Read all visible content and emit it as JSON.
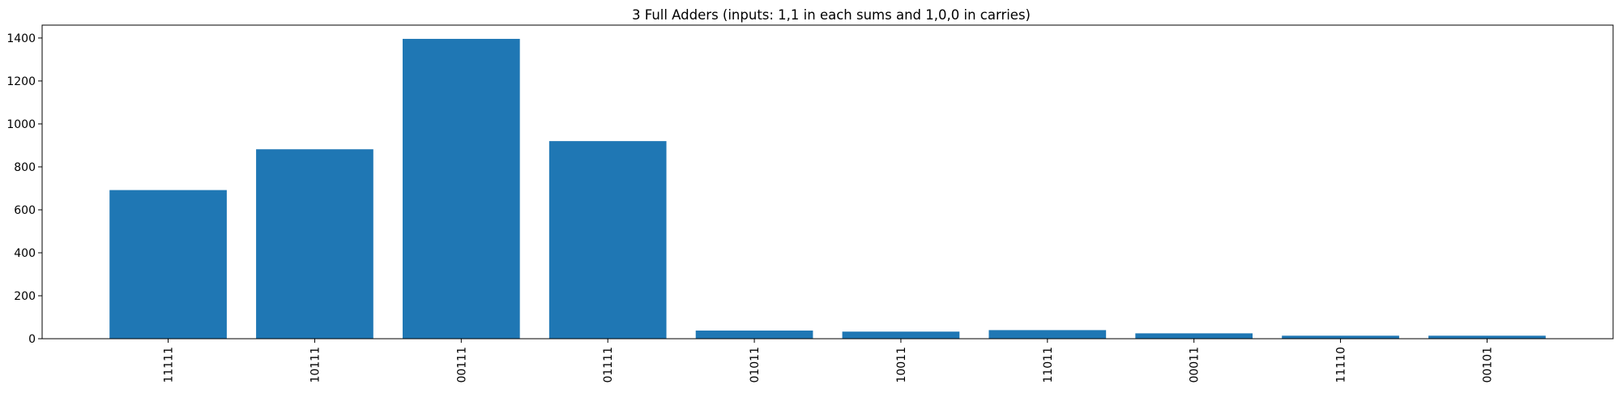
{
  "chart_data": {
    "type": "bar",
    "title": "3 Full Adders (inputs: 1,1 in each sums and 1,0,0 in carries)",
    "xlabel": "",
    "ylabel": "",
    "categories": [
      "11111",
      "10111",
      "00111",
      "01111",
      "01011",
      "10011",
      "11011",
      "00011",
      "11110",
      "00101"
    ],
    "values": [
      692,
      882,
      1396,
      920,
      38,
      33,
      40,
      25,
      14,
      14
    ],
    "ylim": [
      0,
      1460
    ],
    "yticks": [
      0,
      200,
      400,
      600,
      800,
      1000,
      1200,
      1400
    ],
    "bar_color": "#1f77b4",
    "grid": false,
    "legend": "none"
  }
}
